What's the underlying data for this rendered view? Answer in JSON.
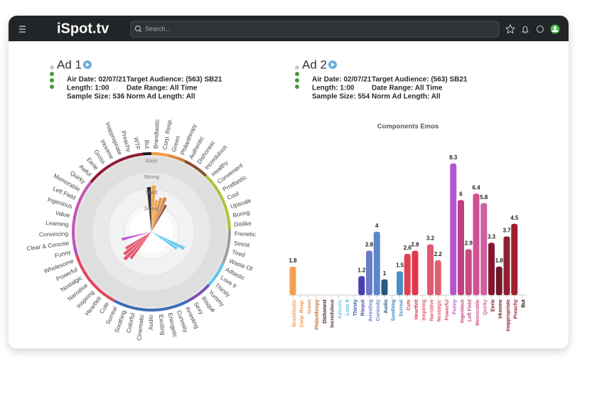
{
  "app": {
    "logo": "iSpot.tv",
    "search_placeholder": "Search..."
  },
  "ads": [
    {
      "title": "Ad 1",
      "air_date": "Air Date: 02/07/21",
      "length": "Length: 1:00",
      "sample_size": "Sample Size: 536",
      "target_audience": "Target Audience: (563) SB21",
      "date_range": "Date Range: All Time",
      "norm_ad_length": "Norm Ad Length: All"
    },
    {
      "title": "Ad 2",
      "air_date": "Air Date: 02/07/21",
      "length": "Length: 1:00",
      "sample_size": "Sample Size: 554",
      "target_audience": "Target Audience: (563) SB21",
      "date_range": "Date Range: All Time",
      "norm_ad_length": "Norm Ad Length: All"
    }
  ],
  "chart_data": [
    {
      "type": "radial",
      "categories": [
        "Brandtastic",
        "Corp. Resp.",
        "Green",
        "Philanthropy",
        "Authentic",
        "Dishonest",
        "Incredulous",
        "Healthy",
        "Convenient",
        "Prodtastic",
        "Cool",
        "Upscale",
        "Boring",
        "Dislike",
        "Frenetic",
        "Sexist",
        "Tired",
        "Waste Of",
        "Adtastic",
        "Love It",
        "Thirsty",
        "Yummy",
        "Risqué",
        "Sexy",
        "Arresting",
        "Curiosity",
        "Energetic",
        "Exciting",
        "Audio",
        "Cinematic",
        "Colorful",
        "Soothing",
        "Surreal",
        "Cute",
        "Heartfelt",
        "Inspiring",
        "Narrative",
        "Nostalgic",
        "Powerful",
        "Wholesome",
        "Funny",
        "Clear & Concise",
        "Convincing",
        "Learning",
        "Value",
        "Ingenious",
        "Left Field",
        "Memorable",
        "Quirky",
        "Awful",
        "Eerie",
        "Gross",
        "Irksome",
        "Inappropriate",
        "Preachy",
        "WTF",
        "But"
      ],
      "values": [
        2.2,
        1.3,
        1.5,
        1.6,
        1.2,
        null,
        null,
        null,
        null,
        null,
        null,
        null,
        null,
        null,
        null,
        null,
        null,
        null,
        1.6,
        1.2,
        null,
        null,
        null,
        null,
        null,
        null,
        null,
        null,
        null,
        null,
        null,
        null,
        null,
        null,
        1.4,
        1.7,
        1.5,
        1.2,
        null,
        null,
        1.2,
        null,
        null,
        null,
        null,
        null,
        null,
        null,
        null,
        null,
        null,
        null,
        null,
        null,
        null,
        null,
        2.1
      ],
      "colors": [
        "#f39c3a",
        "#f39c3a",
        "#e08a3a",
        "#d0783a",
        "#8b4b2b",
        "#8b4b2b",
        "#8b4b2b",
        "#a9c43a",
        "#a9c43a",
        "#a9c43a",
        "#a9c43a",
        "#a9c43a",
        "#a9c43a",
        "#a9c43a",
        "#9e9e9e",
        "#9e9e9e",
        "#9e9e9e",
        "#9e9e9e",
        "#5cc6ef",
        "#5cc6ef",
        "#5cc6ef",
        "#7b4fb5",
        "#7b4fb5",
        "#7b4fb5",
        "#3e6db8",
        "#3e6db8",
        "#3e6db8",
        "#3e6db8",
        "#3e6db8",
        "#3e6db8",
        "#3e6db8",
        "#3e6db8",
        "#3e6db8",
        "#e2445c",
        "#e2445c",
        "#e2445c",
        "#e2445c",
        "#e2445c",
        "#e2445c",
        "#e2445c",
        "#b04cc8",
        "#c254b4",
        "#c254b4",
        "#c254b4",
        "#c254b4",
        "#c254b4",
        "#c254b4",
        "#c254b4",
        "#c254b4",
        "#8e1c34",
        "#8e1c34",
        "#8e1c34",
        "#8e1c34",
        "#8e1c34",
        "#8e1c34",
        "#8e1c34",
        "#1a1a1a"
      ],
      "rlim": [
        0,
        4.5
      ],
      "rticks": [
        {
          "value": 4,
          "label": "Rare"
        },
        {
          "value": 3,
          "label": "Strong"
        },
        {
          "value": 2,
          "label": "Solid"
        },
        {
          "value": 1,
          "label": "Signal"
        }
      ]
    },
    {
      "type": "bar",
      "title": "Components Emos",
      "categories": [
        "Brandtastic",
        "Corp. Resp.",
        "Green",
        "Philanthropy",
        "Dishonest",
        "Incredulous",
        "Adtastic",
        "Love It",
        "Thirsty",
        "Risqué",
        "Arresting",
        "Curiosity",
        "Audio",
        "Soothing",
        "Surreal",
        "Cute",
        "Heartfelt",
        "Inspiring",
        "Narrative",
        "Nostalgic",
        "Powerful",
        "Funny",
        "Ingenious",
        "Left Field",
        "Memorable",
        "Quirky",
        "Eerie",
        "Irksome",
        "Inappropriate",
        "Preachy",
        "But"
      ],
      "values": [
        1.8,
        null,
        null,
        null,
        null,
        null,
        null,
        null,
        null,
        1.2,
        2.8,
        4,
        1,
        null,
        1.5,
        2.6,
        2.8,
        null,
        3.2,
        2.2,
        null,
        8.3,
        6,
        2.9,
        6.4,
        5.8,
        3.3,
        1.8,
        3.7,
        4.5,
        null
      ],
      "colors": [
        "#f2a04e",
        "#ec9048",
        "#dc8a4a",
        "#c0703a",
        "#3a2020",
        "#5a3030",
        "#7ec8e3",
        "#5bb8e0",
        "#2d5f9c",
        "#4a3fb0",
        "#6a7ac8",
        "#5b86cc",
        "#2a5a80",
        "#3a80c0",
        "#4a90c8",
        "#e04050",
        "#e03848",
        "#e05060",
        "#e05870",
        "#e06070",
        "#d85070",
        "#b456d0",
        "#c04080",
        "#c84a80",
        "#d05090",
        "#d060a0",
        "#801830",
        "#701828",
        "#902030",
        "#a02030",
        "#2a1010"
      ]
    }
  ]
}
